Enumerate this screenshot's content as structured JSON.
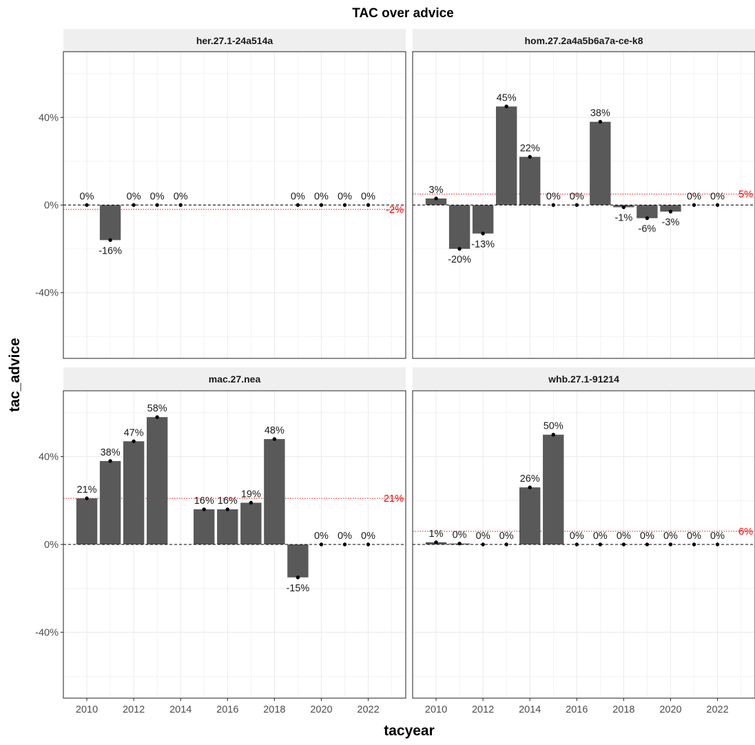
{
  "chart_data": {
    "type": "bar",
    "title": "TAC over advice",
    "xlabel": "tacyear",
    "ylabel": "tac_advice",
    "x_ticks": [
      2010,
      2012,
      2014,
      2016,
      2018,
      2020,
      2022
    ],
    "y_ticks": [
      -0.4,
      0,
      0.4
    ],
    "y_tick_labels": [
      "-40%",
      "0%",
      "40%"
    ],
    "xlim": [
      2009,
      2023.6
    ],
    "ylim": [
      -0.7,
      0.7
    ],
    "grid": true,
    "reference_line": {
      "value": 0,
      "style": "dashed",
      "color": "#000000"
    },
    "colors": {
      "bar": "#595959",
      "point": "#000000",
      "mean_line": "#ff0000",
      "strip": "#efefef",
      "grid": "#ebebeb"
    },
    "panels": [
      {
        "name": "her.27.1-24a514a",
        "mean": -0.02,
        "mean_label": "-2%",
        "points": [
          {
            "x": 2010,
            "y": 0,
            "label": "0%"
          },
          {
            "x": 2011,
            "y": -0.16,
            "label": "-16%"
          },
          {
            "x": 2012,
            "y": 0,
            "label": "0%"
          },
          {
            "x": 2013,
            "y": 0,
            "label": "0%"
          },
          {
            "x": 2014,
            "y": 0,
            "label": "0%"
          },
          {
            "x": 2019,
            "y": 0,
            "label": "0%"
          },
          {
            "x": 2020,
            "y": 0,
            "label": "0%"
          },
          {
            "x": 2021,
            "y": 0,
            "label": "0%"
          },
          {
            "x": 2022,
            "y": 0,
            "label": "0%"
          }
        ]
      },
      {
        "name": "hom.27.2a4a5b6a7a-ce-k8",
        "mean": 0.05,
        "mean_label": "5%",
        "points": [
          {
            "x": 2010,
            "y": 0.03,
            "label": "3%"
          },
          {
            "x": 2011,
            "y": -0.2,
            "label": "-20%"
          },
          {
            "x": 2012,
            "y": -0.13,
            "label": "-13%"
          },
          {
            "x": 2013,
            "y": 0.45,
            "label": "45%"
          },
          {
            "x": 2014,
            "y": 0.22,
            "label": "22%"
          },
          {
            "x": 2015,
            "y": 0,
            "label": "0%"
          },
          {
            "x": 2016,
            "y": 0,
            "label": "0%"
          },
          {
            "x": 2017,
            "y": 0.38,
            "label": "38%"
          },
          {
            "x": 2018,
            "y": -0.01,
            "label": "-1%"
          },
          {
            "x": 2019,
            "y": -0.06,
            "label": "-6%"
          },
          {
            "x": 2020,
            "y": -0.03,
            "label": "-3%"
          },
          {
            "x": 2021,
            "y": 0,
            "label": "0%"
          },
          {
            "x": 2022,
            "y": 0,
            "label": "0%"
          }
        ]
      },
      {
        "name": "mac.27.nea",
        "mean": 0.21,
        "mean_label": "21%",
        "points": [
          {
            "x": 2010,
            "y": 0.21,
            "label": "21%"
          },
          {
            "x": 2011,
            "y": 0.38,
            "label": "38%"
          },
          {
            "x": 2012,
            "y": 0.47,
            "label": "47%"
          },
          {
            "x": 2013,
            "y": 0.58,
            "label": "58%"
          },
          {
            "x": 2015,
            "y": 0.16,
            "label": "16%"
          },
          {
            "x": 2016,
            "y": 0.16,
            "label": "16%"
          },
          {
            "x": 2017,
            "y": 0.19,
            "label": "19%"
          },
          {
            "x": 2018,
            "y": 0.48,
            "label": "48%"
          },
          {
            "x": 2019,
            "y": -0.15,
            "label": "-15%"
          },
          {
            "x": 2020,
            "y": 0,
            "label": "0%"
          },
          {
            "x": 2021,
            "y": 0,
            "label": "0%"
          },
          {
            "x": 2022,
            "y": 0,
            "label": "0%"
          }
        ]
      },
      {
        "name": "whb.27.1-91214",
        "mean": 0.06,
        "mean_label": "6%",
        "points": [
          {
            "x": 2010,
            "y": 0.01,
            "label": "1%"
          },
          {
            "x": 2011,
            "y": 0.004,
            "label": "0%"
          },
          {
            "x": 2012,
            "y": 0,
            "label": "0%"
          },
          {
            "x": 2013,
            "y": 0,
            "label": "0%"
          },
          {
            "x": 2014,
            "y": 0.26,
            "label": "26%"
          },
          {
            "x": 2015,
            "y": 0.5,
            "label": "50%"
          },
          {
            "x": 2016,
            "y": 0,
            "label": "0%"
          },
          {
            "x": 2017,
            "y": 0,
            "label": "0%"
          },
          {
            "x": 2018,
            "y": 0,
            "label": "0%"
          },
          {
            "x": 2019,
            "y": 0,
            "label": "0%"
          },
          {
            "x": 2020,
            "y": 0,
            "label": "0%"
          },
          {
            "x": 2021,
            "y": 0,
            "label": "0%"
          },
          {
            "x": 2022,
            "y": 0,
            "label": "0%"
          }
        ]
      }
    ]
  }
}
